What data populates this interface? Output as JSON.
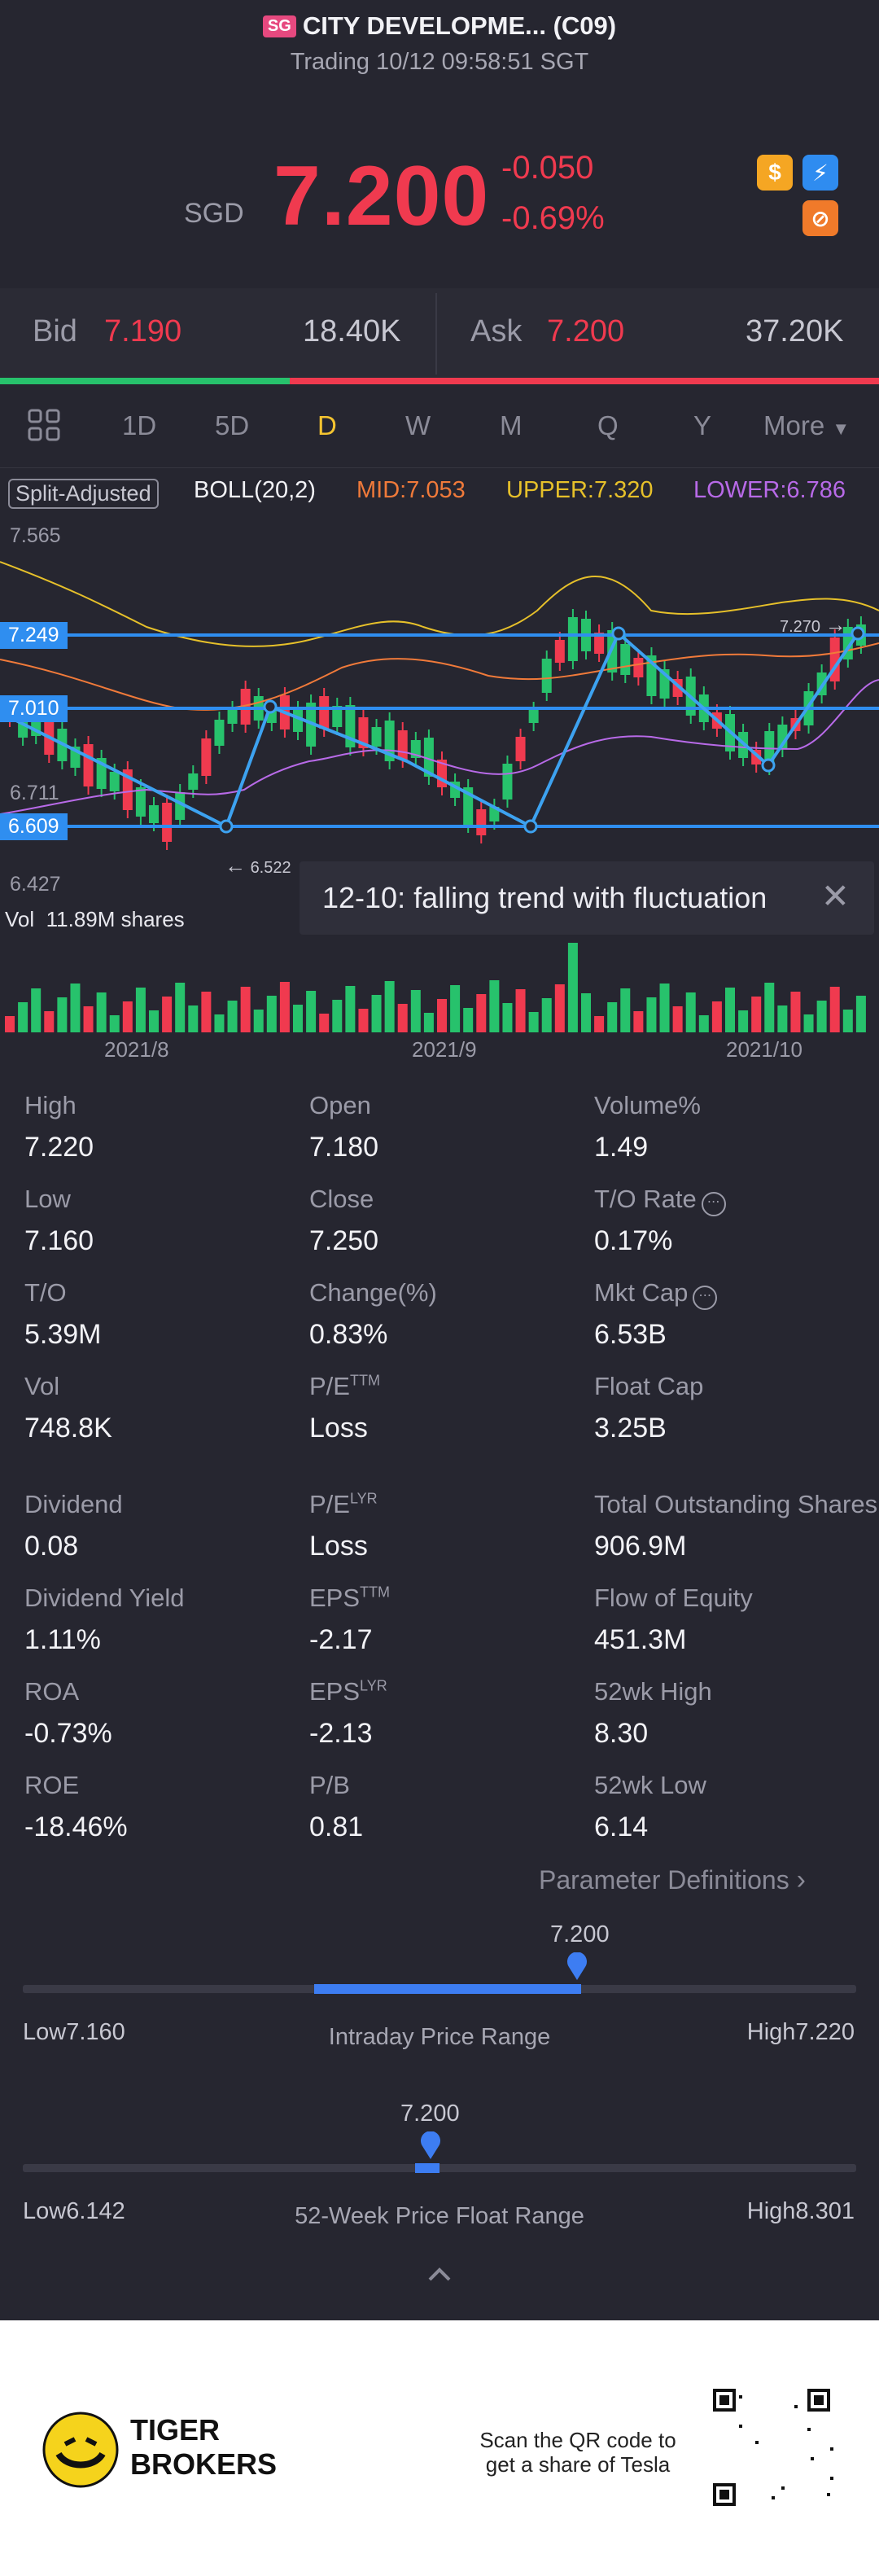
{
  "header": {
    "badge": "SG",
    "title": "CITY DEVELOPME... (C09)",
    "subtitle": "Trading 10/12 09:58:51 SGT",
    "currency": "SGD",
    "price": "7.200",
    "change": "-0.050",
    "change_pct": "-0.69%"
  },
  "quote": {
    "bid_label": "Bid",
    "bid_price": "7.190",
    "bid_size": "18.40K",
    "ask_label": "Ask",
    "ask_price": "7.200",
    "ask_size": "37.20K",
    "bid_ratio": 0.33
  },
  "tabs": [
    "1D",
    "5D",
    "D",
    "W",
    "M",
    "Q",
    "Y",
    "More"
  ],
  "active_tab": "D",
  "indicators": {
    "split": "Split-Adjusted",
    "boll": "BOLL(20,2)",
    "mid": "MID:7.053",
    "upper": "UPPER:7.320",
    "lower": "LOWER:6.786"
  },
  "chart_data": {
    "type": "candlestick",
    "price_axis": [
      "7.565",
      "7.249",
      "7.010",
      "6.711",
      "6.609",
      "6.427"
    ],
    "level_labels": [
      "7.249",
      "7.010",
      "6.609"
    ],
    "annotations": {
      "high": "7.270",
      "low": "6.522"
    },
    "volume_label": "Vol",
    "volume_value": "11.89M shares",
    "x_labels": [
      "2021/8",
      "2021/9",
      "2021/10"
    ]
  },
  "tooltip": "12-10: falling trend with fluctuation",
  "stats": [
    {
      "label": "High",
      "value": "7.220"
    },
    {
      "label": "Open",
      "value": "7.180"
    },
    {
      "label": "Volume%",
      "value": "1.49"
    },
    {
      "label": "Low",
      "value": "7.160"
    },
    {
      "label": "Close",
      "value": "7.250"
    },
    {
      "label": "T/O Rate",
      "value": "0.17%"
    },
    {
      "label": "T/O",
      "value": "5.39M"
    },
    {
      "label": "Change(%)",
      "value": "0.83%"
    },
    {
      "label": "Mkt Cap",
      "value": "6.53B"
    },
    {
      "label": "Vol",
      "value": "748.8K"
    },
    {
      "label": "P/E",
      "sup": "TTM",
      "value": "Loss"
    },
    {
      "label": "Float Cap",
      "value": "3.25B"
    },
    {
      "label": "Dividend",
      "value": "0.08"
    },
    {
      "label": "P/E",
      "sup": "LYR",
      "value": "Loss"
    },
    {
      "label": "Total Outstanding Shares",
      "value": "906.9M"
    },
    {
      "label": "Dividend Yield",
      "value": "1.11%"
    },
    {
      "label": "EPS",
      "sup": "TTM",
      "value": "-2.17"
    },
    {
      "label": "Flow of Equity",
      "value": "451.3M"
    },
    {
      "label": "ROA",
      "value": "-0.73%"
    },
    {
      "label": "EPS",
      "sup": "LYR",
      "value": "-2.13"
    },
    {
      "label": "52wk High",
      "value": "8.30"
    },
    {
      "label": "ROE",
      "value": "-18.46%"
    },
    {
      "label": "P/B",
      "value": "0.81"
    },
    {
      "label": "52wk Low",
      "value": "6.14"
    }
  ],
  "param_link": "Parameter Definitions",
  "intraday": {
    "marker": "7.200",
    "low_label": "Low7.160",
    "high_label": "High7.220",
    "title": "Intraday Price Range",
    "fill_start": 0.35,
    "fill_end": 0.67
  },
  "week52": {
    "marker": "7.200",
    "low_label": "Low6.142",
    "high_label": "High8.301",
    "title": "52-Week Price Float Range",
    "pos": 0.49
  },
  "footer": {
    "brand1": "TIGER",
    "brand2": "BROKERS",
    "cta1": "Scan the QR code to",
    "cta2": "get a share of Tesla"
  }
}
